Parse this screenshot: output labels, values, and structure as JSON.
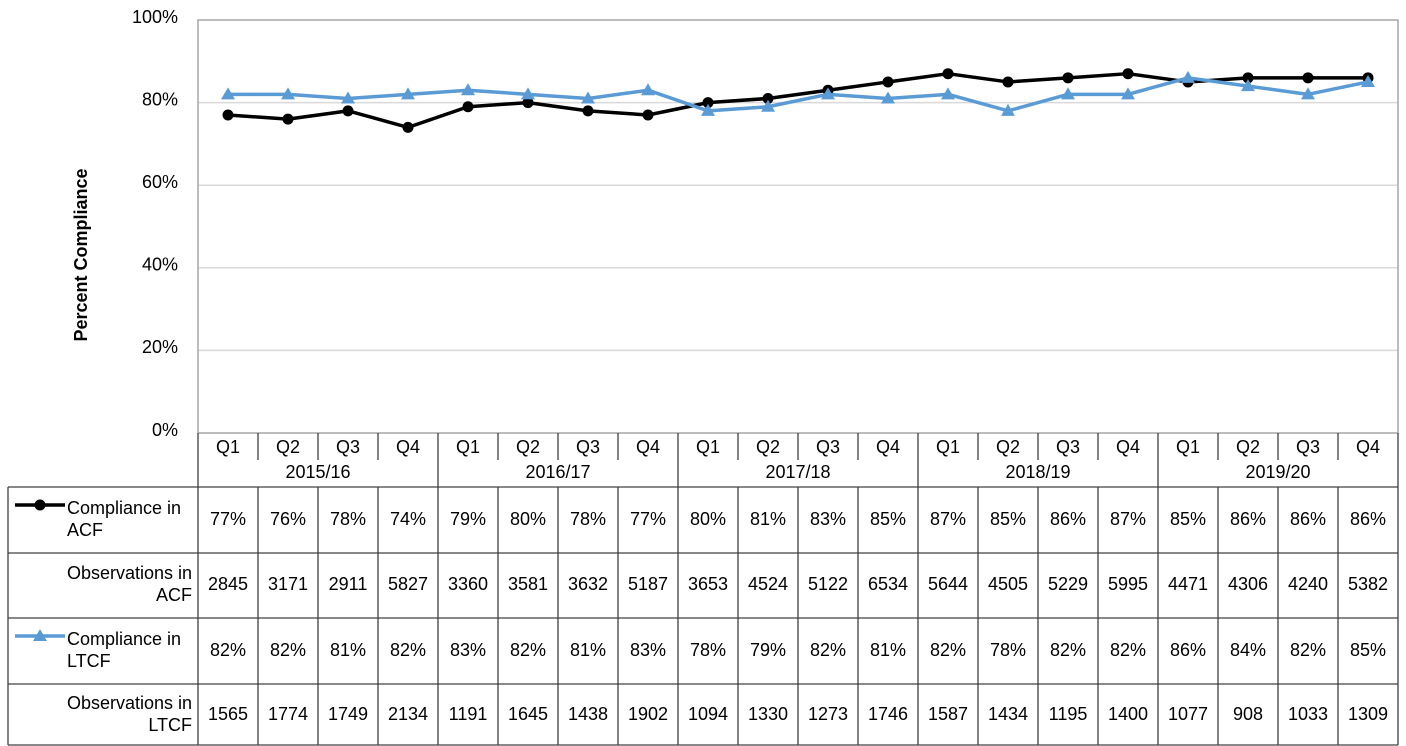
{
  "chart_data": {
    "type": "line",
    "y_label": "Percent Compliance",
    "categories": [
      "Q1",
      "Q2",
      "Q3",
      "Q4",
      "Q1",
      "Q2",
      "Q3",
      "Q4",
      "Q1",
      "Q2",
      "Q3",
      "Q4",
      "Q1",
      "Q2",
      "Q3",
      "Q4",
      "Q1",
      "Q2",
      "Q3",
      "Q4"
    ],
    "groups": [
      "2015/16",
      "2016/17",
      "2017/18",
      "2018/19",
      "2019/20"
    ],
    "series": [
      {
        "name": "Compliance in ACF",
        "color": "#000000",
        "marker": "circle",
        "values": [
          77,
          76,
          78,
          74,
          79,
          80,
          78,
          77,
          80,
          81,
          83,
          85,
          87,
          85,
          86,
          87,
          85,
          86,
          86,
          86
        ],
        "value_labels": [
          "77%",
          "76%",
          "78%",
          "74%",
          "79%",
          "80%",
          "78%",
          "77%",
          "80%",
          "81%",
          "83%",
          "85%",
          "87%",
          "85%",
          "86%",
          "87%",
          "85%",
          "86%",
          "86%",
          "86%"
        ]
      },
      {
        "name": "Compliance in LTCF",
        "color": "#5b9bd5",
        "marker": "triangle",
        "values": [
          82,
          82,
          81,
          82,
          83,
          82,
          81,
          83,
          78,
          79,
          82,
          81,
          82,
          78,
          82,
          82,
          86,
          84,
          82,
          85
        ],
        "value_labels": [
          "82%",
          "82%",
          "81%",
          "82%",
          "83%",
          "82%",
          "81%",
          "83%",
          "78%",
          "79%",
          "82%",
          "81%",
          "82%",
          "78%",
          "82%",
          "82%",
          "86%",
          "84%",
          "82%",
          "85%"
        ]
      }
    ],
    "observations": [
      {
        "name": "Observations in ACF",
        "values": [
          2845,
          3171,
          2911,
          5827,
          3360,
          3581,
          3632,
          5187,
          3653,
          4524,
          5122,
          6534,
          5644,
          4505,
          5229,
          5995,
          4471,
          4306,
          4240,
          5382
        ]
      },
      {
        "name": "Observations in LTCF",
        "values": [
          1565,
          1774,
          1749,
          2134,
          1191,
          1645,
          1438,
          1902,
          1094,
          1330,
          1273,
          1746,
          1587,
          1434,
          1195,
          1400,
          1077,
          908,
          1033,
          1309
        ]
      }
    ],
    "ylim": [
      0,
      100
    ],
    "yticks": [
      {
        "value": 0,
        "label": "0%"
      },
      {
        "value": 20,
        "label": "20%"
      },
      {
        "value": 40,
        "label": "40%"
      },
      {
        "value": 60,
        "label": "60%"
      },
      {
        "value": 80,
        "label": "80%"
      },
      {
        "value": 100,
        "label": "100%"
      }
    ],
    "grid": true
  }
}
